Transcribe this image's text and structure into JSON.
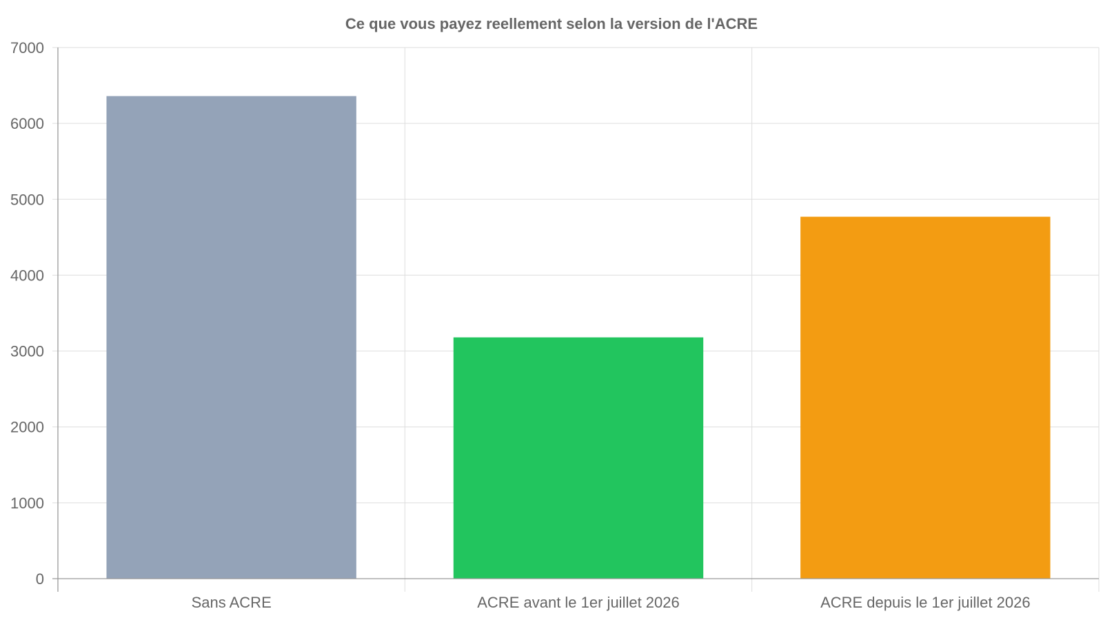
{
  "chart_data": {
    "type": "bar",
    "title": "Ce que vous payez reellement selon la version de l'ACRE",
    "xlabel": "",
    "ylabel": "",
    "categories": [
      "Sans ACRE",
      "ACRE avant le 1er juillet 2026",
      "ACRE depuis le 1er juillet 2026"
    ],
    "values": [
      6360,
      3180,
      4770
    ],
    "colors": [
      "#94a3b8",
      "#22c55e",
      "#f39c12"
    ],
    "ylim": [
      0,
      7000
    ],
    "yticks": [
      "0",
      "1000",
      "2000",
      "3000",
      "4000",
      "5000",
      "6000",
      "7000"
    ],
    "grid": true,
    "legend": "none"
  }
}
